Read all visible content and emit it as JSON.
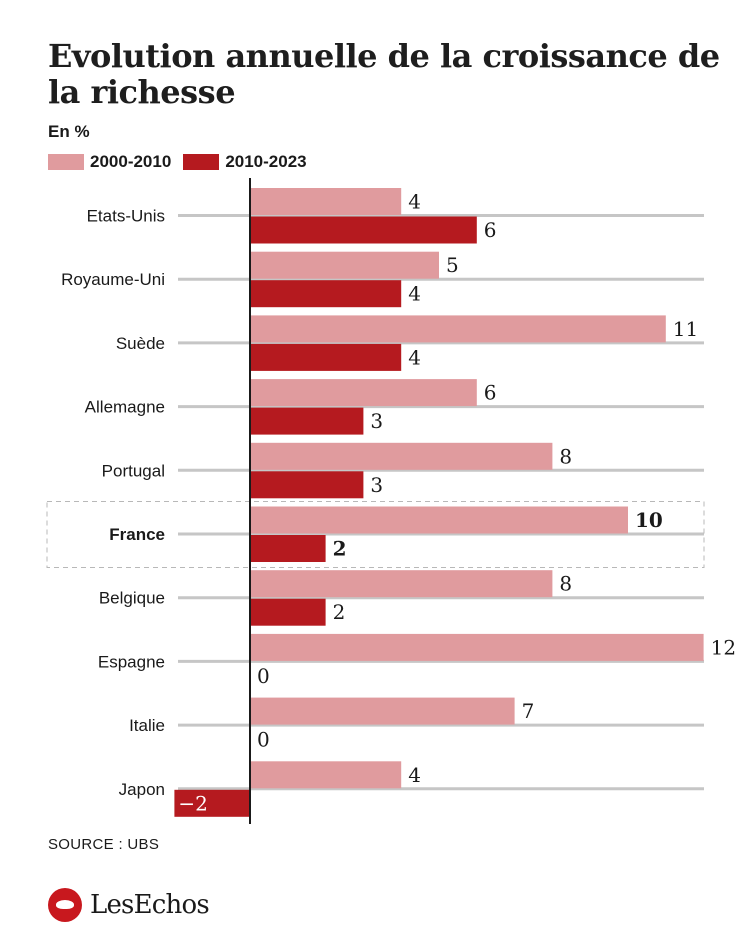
{
  "title": "Evolution annuelle de la croissance de la richesse",
  "unit": "En %",
  "source": "SOURCE : UBS",
  "logo_text": "LesEchos",
  "colors": {
    "series1": "#e09b9e",
    "series2": "#b51a1f",
    "grid": "#c6c6c6"
  },
  "chart_data": {
    "type": "bar",
    "orientation": "horizontal",
    "categories": [
      "Etats-Unis",
      "Royaume-Uni",
      "Suède",
      "Allemagne",
      "Portugal",
      "France",
      "Belgique",
      "Espagne",
      "Italie",
      "Japon"
    ],
    "highlight": "France",
    "series": [
      {
        "name": "2000-2010",
        "values": [
          4,
          5,
          11,
          6,
          8,
          10,
          8,
          12,
          7,
          4
        ]
      },
      {
        "name": "2010-2023",
        "values": [
          6,
          4,
          4,
          3,
          3,
          2,
          2,
          0,
          0,
          -2
        ]
      }
    ],
    "xlim": [
      -2,
      12
    ],
    "grid": true,
    "legend": "top-left"
  }
}
